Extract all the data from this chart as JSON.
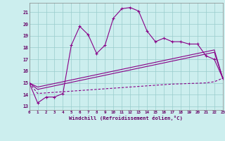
{
  "x": [
    0,
    1,
    2,
    3,
    4,
    5,
    6,
    7,
    8,
    9,
    10,
    11,
    12,
    13,
    14,
    15,
    16,
    17,
    18,
    19,
    20,
    21,
    22,
    23
  ],
  "y_main": [
    15.0,
    13.3,
    13.8,
    13.8,
    14.1,
    18.2,
    19.8,
    19.1,
    17.5,
    18.2,
    20.5,
    21.3,
    21.4,
    21.1,
    19.4,
    18.5,
    18.8,
    18.5,
    18.5,
    18.3,
    18.3,
    17.3,
    17.0,
    15.4
  ],
  "y_line1": [
    15.0,
    14.65,
    14.8,
    14.95,
    15.1,
    15.25,
    15.4,
    15.55,
    15.7,
    15.85,
    16.0,
    16.15,
    16.3,
    16.45,
    16.6,
    16.75,
    16.9,
    17.05,
    17.2,
    17.35,
    17.5,
    17.65,
    17.8,
    15.4
  ],
  "y_line2": [
    15.0,
    14.45,
    14.6,
    14.75,
    14.9,
    15.05,
    15.2,
    15.35,
    15.5,
    15.65,
    15.8,
    15.95,
    16.1,
    16.25,
    16.4,
    16.55,
    16.7,
    16.85,
    17.0,
    17.15,
    17.3,
    17.45,
    17.6,
    15.4
  ],
  "y_dashed": [
    15.0,
    14.1,
    14.15,
    14.2,
    14.25,
    14.3,
    14.35,
    14.4,
    14.45,
    14.5,
    14.55,
    14.6,
    14.65,
    14.7,
    14.75,
    14.8,
    14.85,
    14.9,
    14.92,
    14.95,
    14.97,
    15.0,
    15.1,
    15.4
  ],
  "color": "#880088",
  "bg_color": "#cceeee",
  "grid_color": "#99cccc",
  "xlabel": "Windchill (Refroidissement éolien,°C)",
  "yticks": [
    13,
    14,
    15,
    16,
    17,
    18,
    19,
    20,
    21
  ],
  "ylim": [
    12.7,
    21.8
  ],
  "xlim": [
    0,
    23
  ]
}
